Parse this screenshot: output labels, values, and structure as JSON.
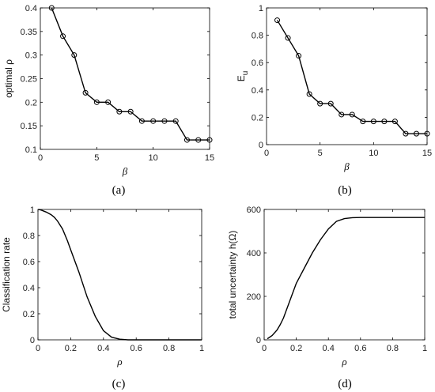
{
  "chart_data": [
    {
      "id": "a",
      "type": "line",
      "panel_label": "(a)",
      "xlabel": "β",
      "ylabel": "optimal ρ",
      "xlim": [
        0,
        15
      ],
      "ylim": [
        0.1,
        0.4
      ],
      "xticks": [
        0,
        5,
        10,
        15
      ],
      "yticks": [
        0.1,
        0.15,
        0.2,
        0.25,
        0.3,
        0.35,
        0.4
      ],
      "markers": true,
      "x": [
        1,
        2,
        3,
        4,
        5,
        6,
        7,
        8,
        9,
        10,
        11,
        12,
        13,
        14,
        15
      ],
      "y": [
        0.4,
        0.34,
        0.3,
        0.22,
        0.2,
        0.2,
        0.18,
        0.18,
        0.16,
        0.16,
        0.16,
        0.16,
        0.12,
        0.12,
        0.12
      ]
    },
    {
      "id": "b",
      "type": "line",
      "panel_label": "(b)",
      "xlabel": "β",
      "ylabel": "E",
      "ylabel_sub": "u",
      "xlim": [
        0,
        15
      ],
      "ylim": [
        0,
        1
      ],
      "xticks": [
        0,
        5,
        10,
        15
      ],
      "yticks": [
        0,
        0.2,
        0.4,
        0.6,
        0.8,
        1
      ],
      "markers": true,
      "x": [
        1,
        2,
        3,
        4,
        5,
        6,
        7,
        8,
        9,
        10,
        11,
        12,
        13,
        14,
        15
      ],
      "y": [
        0.91,
        0.78,
        0.65,
        0.37,
        0.3,
        0.3,
        0.22,
        0.22,
        0.17,
        0.17,
        0.17,
        0.17,
        0.08,
        0.08,
        0.08
      ]
    },
    {
      "id": "c",
      "type": "line",
      "panel_label": "(c)",
      "xlabel": "ρ",
      "ylabel": "Classification rate",
      "xlim": [
        0,
        1
      ],
      "ylim": [
        0,
        1
      ],
      "xticks": [
        0,
        0.2,
        0.4,
        0.6,
        0.8,
        1
      ],
      "yticks": [
        0,
        0.2,
        0.4,
        0.6,
        0.8,
        1
      ],
      "markers": false,
      "x": [
        0,
        0.02,
        0.05,
        0.08,
        0.1,
        0.12,
        0.15,
        0.18,
        0.2,
        0.25,
        0.3,
        0.35,
        0.4,
        0.45,
        0.5,
        0.55,
        0.6,
        0.7,
        0.8,
        0.9,
        1
      ],
      "y": [
        1,
        0.995,
        0.98,
        0.96,
        0.94,
        0.91,
        0.85,
        0.76,
        0.69,
        0.52,
        0.33,
        0.18,
        0.07,
        0.02,
        0.005,
        0,
        0,
        0,
        0,
        0,
        0
      ]
    },
    {
      "id": "d",
      "type": "line",
      "panel_label": "(d)",
      "xlabel": "ρ",
      "ylabel": "total uncertainty h(Ω)",
      "xlim": [
        0,
        1
      ],
      "ylim": [
        0,
        600
      ],
      "xticks": [
        0,
        0.2,
        0.4,
        0.6,
        0.8,
        1
      ],
      "yticks": [
        0,
        200,
        400,
        600
      ],
      "markers": false,
      "x": [
        0.02,
        0.05,
        0.08,
        0.1,
        0.12,
        0.15,
        0.18,
        0.2,
        0.25,
        0.3,
        0.35,
        0.4,
        0.45,
        0.5,
        0.55,
        0.6,
        0.7,
        0.8,
        0.9,
        1
      ],
      "y": [
        5,
        20,
        45,
        70,
        100,
        160,
        220,
        260,
        330,
        400,
        460,
        510,
        545,
        558,
        562,
        563,
        563,
        563,
        563,
        563
      ]
    }
  ]
}
